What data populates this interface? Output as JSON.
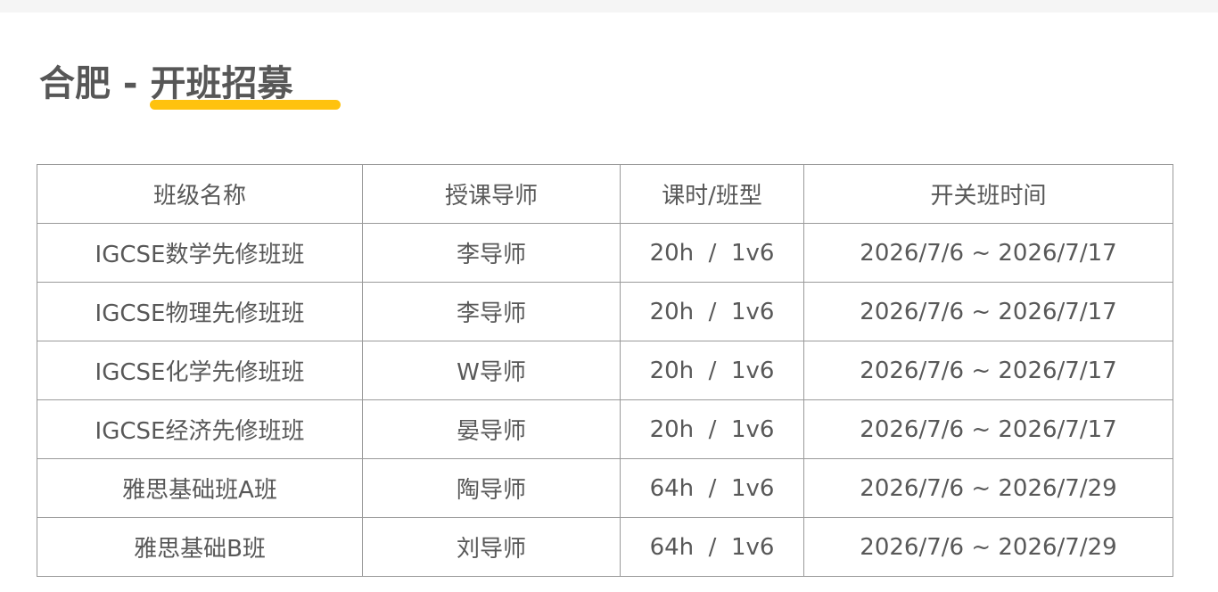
{
  "title": {
    "city": "合肥 - ",
    "highlight": "开班招募"
  },
  "colors": {
    "accent": "#ffc20e",
    "text": "#555555",
    "border": "#9a9a9a"
  },
  "table": {
    "headers": [
      "班级名称",
      "授课导师",
      "课时/班型",
      "开关班时间"
    ],
    "rows": [
      [
        "IGCSE数学先修班班",
        "李导师",
        "20h  /  1v6",
        "2026/7/6 ~ 2026/7/17"
      ],
      [
        "IGCSE物理先修班班",
        "李导师",
        "20h  /  1v6",
        "2026/7/6 ~ 2026/7/17"
      ],
      [
        "IGCSE化学先修班班",
        "W导师",
        "20h  /  1v6",
        "2026/7/6 ~ 2026/7/17"
      ],
      [
        "IGCSE经济先修班班",
        "晏导师",
        "20h  /  1v6",
        "2026/7/6 ~ 2026/7/17"
      ],
      [
        "雅思基础班A班",
        "陶导师",
        "64h  /  1v6",
        "2026/7/6 ~ 2026/7/29"
      ],
      [
        "雅思基础B班",
        "刘导师",
        "64h  /  1v6",
        "2026/7/6 ~ 2026/7/29"
      ]
    ]
  }
}
